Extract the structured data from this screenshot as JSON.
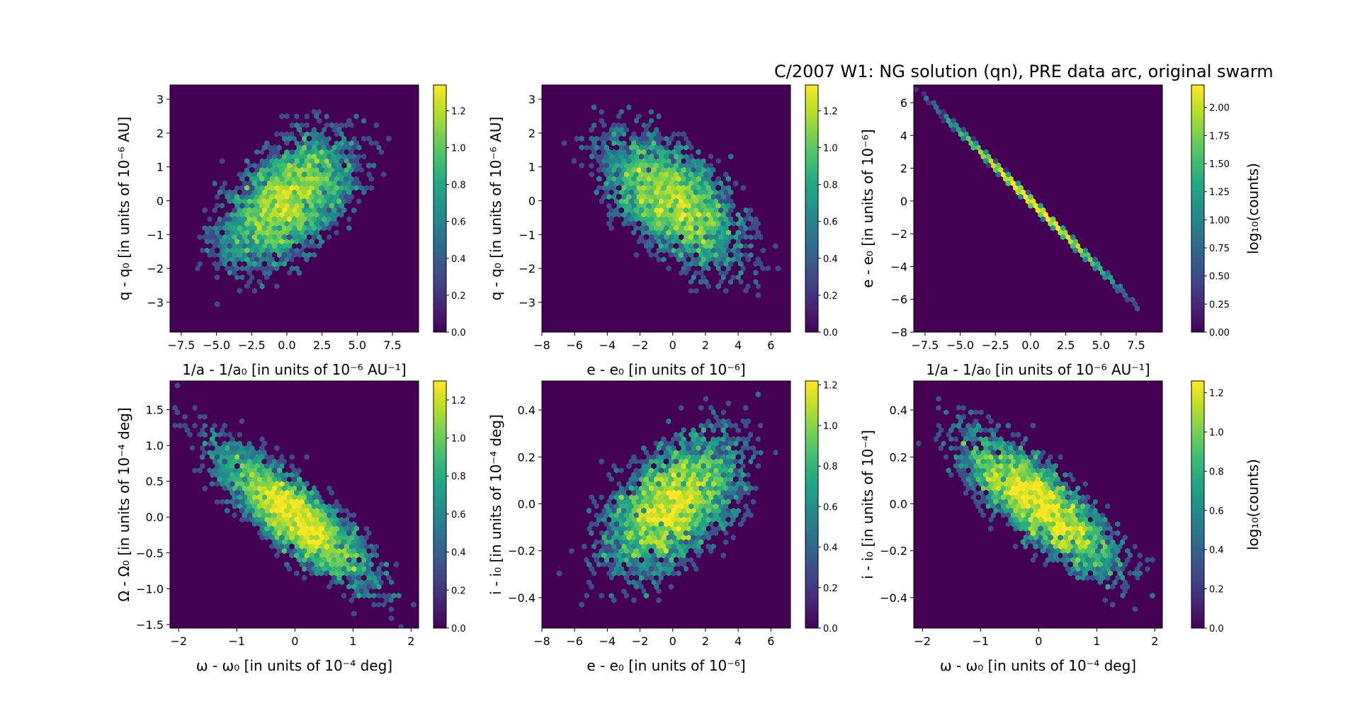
{
  "figure": {
    "suptitle": "C/2007 W1: NG solution (qn), PRE data arc, original swarm"
  },
  "chart_data": [
    {
      "type": "heatmap",
      "subtype": "hexbin",
      "xlabel": "1/a - 1/a₀ [in units of 10⁻⁶ AU⁻¹]",
      "ylabel": "q - q₀ [in units of 10⁻⁶ AU]",
      "xlim": [
        -8.3,
        9.36
      ],
      "ylim": [
        -3.88,
        3.42
      ],
      "xticks": [
        -7.5,
        -5.0,
        -2.5,
        0.0,
        2.5,
        5.0,
        7.5
      ],
      "xtick_labels": [
        "−7.5",
        "−5.0",
        "−2.5",
        "0.0",
        "2.5",
        "5.0",
        "7.5"
      ],
      "yticks": [
        -3,
        -2,
        -1,
        0,
        1,
        2,
        3
      ],
      "ytick_labels": [
        "−3",
        "−2",
        "−1",
        "0",
        "1",
        "2",
        "3"
      ],
      "colorbar": {
        "label": "",
        "vmin": 0.0,
        "vmax": 1.34,
        "ticks": [
          0.0,
          0.2,
          0.4,
          0.6,
          0.8,
          1.0,
          1.2
        ],
        "tick_labels": [
          "0.0",
          "0.2",
          "0.4",
          "0.6",
          "0.8",
          "1.0",
          "1.2"
        ]
      },
      "distribution": {
        "mean": [
          0.0,
          0.0
        ],
        "std": [
          2.6,
          1.05
        ],
        "correlation": 0.55
      }
    },
    {
      "type": "heatmap",
      "subtype": "hexbin",
      "xlabel": "e - e₀ [in units of 10⁻⁶]",
      "ylabel": "q - q₀ [in units of 10⁻⁶ AU]",
      "xlim": [
        -8.0,
        7.2
      ],
      "ylim": [
        -3.88,
        3.42
      ],
      "xticks": [
        -8,
        -6,
        -4,
        -2,
        0,
        2,
        4,
        6
      ],
      "xtick_labels": [
        "−8",
        "−6",
        "−4",
        "−2",
        "0",
        "2",
        "4",
        "6"
      ],
      "yticks": [
        -3,
        -2,
        -1,
        0,
        1,
        2,
        3
      ],
      "ytick_labels": [
        "−3",
        "−2",
        "−1",
        "0",
        "1",
        "2",
        "3"
      ],
      "colorbar": {
        "label": "",
        "vmin": 0.0,
        "vmax": 1.34,
        "ticks": [
          0.0,
          0.2,
          0.4,
          0.6,
          0.8,
          1.0,
          1.2
        ],
        "tick_labels": [
          "0.0",
          "0.2",
          "0.4",
          "0.6",
          "0.8",
          "1.0",
          "1.2"
        ]
      },
      "distribution": {
        "mean": [
          0.0,
          0.0
        ],
        "std": [
          2.3,
          1.05
        ],
        "correlation": -0.55
      }
    },
    {
      "type": "heatmap",
      "subtype": "hexbin",
      "xlabel": "1/a - 1/a₀ [in units of 10⁻⁶ AU⁻¹]",
      "ylabel": "e - e₀ [in units of 10⁻⁶]",
      "xlim": [
        -8.3,
        9.36
      ],
      "ylim": [
        -8.0,
        7.08
      ],
      "xticks": [
        -7.5,
        -5.0,
        -2.5,
        0.0,
        2.5,
        5.0,
        7.5
      ],
      "xtick_labels": [
        "−7.5",
        "−5.0",
        "−2.5",
        "0.0",
        "2.5",
        "5.0",
        "7.5"
      ],
      "yticks": [
        -8,
        -6,
        -4,
        -2,
        0,
        2,
        4,
        6
      ],
      "ytick_labels": [
        "−8",
        "−6",
        "−4",
        "−2",
        "0",
        "2",
        "4",
        "6"
      ],
      "colorbar": {
        "label": "log₁₀(counts)",
        "vmin": 0.0,
        "vmax": 2.2,
        "ticks": [
          0.0,
          0.25,
          0.5,
          0.75,
          1.0,
          1.25,
          1.5,
          1.75,
          2.0
        ],
        "tick_labels": [
          "0.00",
          "0.25",
          "0.50",
          "0.75",
          "1.00",
          "1.25",
          "1.50",
          "1.75",
          "2.00"
        ]
      },
      "distribution": {
        "mean": [
          0.0,
          0.0
        ],
        "std": [
          2.6,
          2.2
        ],
        "correlation": -0.9995
      }
    },
    {
      "type": "heatmap",
      "subtype": "hexbin",
      "xlabel": "ω - ω₀ [in units of 10⁻⁴ deg]",
      "ylabel": "Ω - Ω₀ [in units of 10⁻⁴ deg]",
      "xlim": [
        -2.15,
        2.13
      ],
      "ylim": [
        -1.55,
        1.9
      ],
      "xticks": [
        -2,
        -1,
        0,
        1,
        2
      ],
      "xtick_labels": [
        "−2",
        "−1",
        "0",
        "1",
        "2"
      ],
      "yticks": [
        -1.5,
        -1.0,
        -0.5,
        0.0,
        0.5,
        1.0,
        1.5
      ],
      "ytick_labels": [
        "−1.5",
        "−1.0",
        "−0.5",
        "0.0",
        "0.5",
        "1.0",
        "1.5"
      ],
      "colorbar": {
        "label": "",
        "vmin": 0.0,
        "vmax": 1.3,
        "ticks": [
          0.0,
          0.2,
          0.4,
          0.6,
          0.8,
          1.0,
          1.2
        ],
        "tick_labels": [
          "0.0",
          "0.2",
          "0.4",
          "0.6",
          "0.8",
          "1.0",
          "1.2"
        ]
      },
      "distribution": {
        "mean": [
          0.0,
          0.0
        ],
        "std": [
          0.72,
          0.52
        ],
        "correlation": -0.82
      }
    },
    {
      "type": "heatmap",
      "subtype": "hexbin",
      "xlabel": "e - e₀ [in units of 10⁻⁶]",
      "ylabel": "i - i₀ [in units of 10⁻⁴ deg]",
      "xlim": [
        -8.0,
        7.2
      ],
      "ylim": [
        -0.53,
        0.524
      ],
      "xticks": [
        -8,
        -6,
        -4,
        -2,
        0,
        2,
        4,
        6
      ],
      "xtick_labels": [
        "−8",
        "−6",
        "−4",
        "−2",
        "0",
        "2",
        "4",
        "6"
      ],
      "yticks": [
        -0.4,
        -0.2,
        0.0,
        0.2,
        0.4
      ],
      "ytick_labels": [
        "−0.4",
        "−0.2",
        "0.0",
        "0.2",
        "0.4"
      ],
      "colorbar": {
        "label": "",
        "vmin": 0.0,
        "vmax": 1.22,
        "ticks": [
          0.0,
          0.2,
          0.4,
          0.6,
          0.8,
          1.0,
          1.2
        ],
        "tick_labels": [
          "0.0",
          "0.2",
          "0.4",
          "0.6",
          "0.8",
          "1.0",
          "1.2"
        ]
      },
      "distribution": {
        "mean": [
          0.0,
          0.0
        ],
        "std": [
          2.3,
          0.16
        ],
        "correlation": 0.5
      }
    },
    {
      "type": "heatmap",
      "subtype": "hexbin",
      "xlabel": "ω - ω₀ [in units of 10⁻⁴ deg]",
      "ylabel": "i - i₀ [in units of 10⁻⁴]",
      "xlim": [
        -2.15,
        2.13
      ],
      "ylim": [
        -0.53,
        0.524
      ],
      "xticks": [
        -2,
        -1,
        0,
        1,
        2
      ],
      "xtick_labels": [
        "−2",
        "−1",
        "0",
        "1",
        "2"
      ],
      "yticks": [
        -0.4,
        -0.2,
        0.0,
        0.2,
        0.4
      ],
      "ytick_labels": [
        "−0.4",
        "−0.2",
        "0.0",
        "0.2",
        "0.4"
      ],
      "colorbar": {
        "label": "log₁₀(counts)",
        "vmin": 0.0,
        "vmax": 1.26,
        "ticks": [
          0.0,
          0.2,
          0.4,
          0.6,
          0.8,
          1.0,
          1.2
        ],
        "tick_labels": [
          "0.0",
          "0.2",
          "0.4",
          "0.6",
          "0.8",
          "1.0",
          "1.2"
        ]
      },
      "distribution": {
        "mean": [
          0.0,
          0.0
        ],
        "std": [
          0.72,
          0.16
        ],
        "correlation": -0.8
      }
    }
  ]
}
